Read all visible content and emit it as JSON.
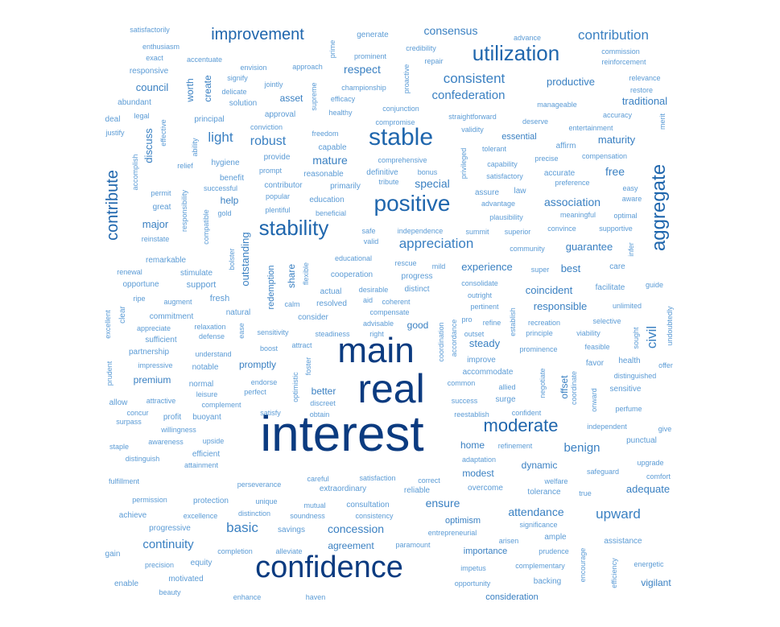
{
  "colors": {
    "light": "#5b9bd5",
    "mid": "#3a80c2",
    "strong": "#1f66ad",
    "dark": "#0b3b80"
  },
  "words": [
    {
      "text": "interest",
      "weight": 10
    },
    {
      "text": "real",
      "weight": 9
    },
    {
      "text": "main",
      "weight": 8
    },
    {
      "text": "confidence",
      "weight": 7
    },
    {
      "text": "stable",
      "weight": 6
    },
    {
      "text": "positive",
      "weight": 6
    },
    {
      "text": "stability",
      "weight": 5
    },
    {
      "text": "utilization",
      "weight": 5
    },
    {
      "text": "aggregate",
      "weight": 5
    },
    {
      "text": "moderate",
      "weight": 5
    },
    {
      "text": "contribute",
      "weight": 4
    },
    {
      "text": "improvement",
      "weight": 4
    },
    {
      "text": "contribution",
      "weight": 3
    },
    {
      "text": "consistent",
      "weight": 3
    },
    {
      "text": "confederation",
      "weight": 3
    },
    {
      "text": "appreciation",
      "weight": 3
    },
    {
      "text": "robust",
      "weight": 3
    },
    {
      "text": "light",
      "weight": 3
    },
    {
      "text": "basic",
      "weight": 3
    },
    {
      "text": "upward",
      "weight": 3
    },
    {
      "text": "civil",
      "weight": 3
    },
    {
      "text": "benign",
      "weight": 3
    },
    {
      "text": "continuity",
      "weight": 3
    },
    {
      "text": "consensus",
      "weight": 2
    },
    {
      "text": "respect",
      "weight": 2
    },
    {
      "text": "productive",
      "weight": 2
    },
    {
      "text": "traditional",
      "weight": 2
    },
    {
      "text": "mature",
      "weight": 2
    },
    {
      "text": "maturity",
      "weight": 2
    },
    {
      "text": "free",
      "weight": 2
    },
    {
      "text": "special",
      "weight": 2
    },
    {
      "text": "association",
      "weight": 2
    },
    {
      "text": "guarantee",
      "weight": 2
    },
    {
      "text": "experience",
      "weight": 2
    },
    {
      "text": "best",
      "weight": 2
    },
    {
      "text": "coincident",
      "weight": 2
    },
    {
      "text": "responsible",
      "weight": 2
    },
    {
      "text": "council",
      "weight": 2
    },
    {
      "text": "discuss",
      "weight": 2
    },
    {
      "text": "major",
      "weight": 2
    },
    {
      "text": "outstanding",
      "weight": 2
    },
    {
      "text": "ensure",
      "weight": 2
    },
    {
      "text": "attendance",
      "weight": 2
    },
    {
      "text": "concession",
      "weight": 2
    },
    {
      "text": "adequate",
      "weight": 2
    },
    {
      "text": "premium",
      "weight": 2
    },
    {
      "text": "steady",
      "weight": 2
    },
    {
      "text": "asset",
      "weight": 2
    },
    {
      "text": "worth",
      "weight": 2
    },
    {
      "text": "create",
      "weight": 2
    },
    {
      "text": "essential",
      "weight": 2
    },
    {
      "text": "help",
      "weight": 2
    },
    {
      "text": "good",
      "weight": 2
    },
    {
      "text": "home",
      "weight": 2
    },
    {
      "text": "modest",
      "weight": 2
    },
    {
      "text": "optimism",
      "weight": 2
    },
    {
      "text": "vigilant",
      "weight": 2
    },
    {
      "text": "better",
      "weight": 2
    },
    {
      "text": "dynamic",
      "weight": 2
    },
    {
      "text": "promptly",
      "weight": 2
    },
    {
      "text": "agreement",
      "weight": 2
    },
    {
      "text": "share",
      "weight": 2
    },
    {
      "text": "redemption",
      "weight": 2
    },
    {
      "text": "offset",
      "weight": 2
    },
    {
      "text": "importance",
      "weight": 2
    },
    {
      "text": "consideration",
      "weight": 2
    },
    {
      "text": "satisfactorily",
      "weight": 1
    },
    {
      "text": "enthusiasm",
      "weight": 1
    },
    {
      "text": "exact",
      "weight": 1
    },
    {
      "text": "accentuate",
      "weight": 1
    },
    {
      "text": "responsive",
      "weight": 1
    },
    {
      "text": "prime",
      "weight": 1
    },
    {
      "text": "generate",
      "weight": 1
    },
    {
      "text": "credibility",
      "weight": 1
    },
    {
      "text": "advance",
      "weight": 1
    },
    {
      "text": "commission",
      "weight": 1
    },
    {
      "text": "reinforcement",
      "weight": 1
    },
    {
      "text": "prominent",
      "weight": 1
    },
    {
      "text": "repair",
      "weight": 1
    },
    {
      "text": "envision",
      "weight": 1
    },
    {
      "text": "approach",
      "weight": 1
    },
    {
      "text": "signify",
      "weight": 1
    },
    {
      "text": "jointly",
      "weight": 1
    },
    {
      "text": "delicate",
      "weight": 1
    },
    {
      "text": "supreme",
      "weight": 1
    },
    {
      "text": "championship",
      "weight": 1
    },
    {
      "text": "proactive",
      "weight": 1
    },
    {
      "text": "relevance",
      "weight": 1
    },
    {
      "text": "restore",
      "weight": 1
    },
    {
      "text": "abundant",
      "weight": 1
    },
    {
      "text": "solution",
      "weight": 1
    },
    {
      "text": "efficacy",
      "weight": 1
    },
    {
      "text": "conjunction",
      "weight": 1
    },
    {
      "text": "manageable",
      "weight": 1
    },
    {
      "text": "legal",
      "weight": 1
    },
    {
      "text": "healthy",
      "weight": 1
    },
    {
      "text": "approval",
      "weight": 1
    },
    {
      "text": "straightforward",
      "weight": 1
    },
    {
      "text": "accuracy",
      "weight": 1
    },
    {
      "text": "merit",
      "weight": 1
    },
    {
      "text": "deal",
      "weight": 1
    },
    {
      "text": "principal",
      "weight": 1
    },
    {
      "text": "compromise",
      "weight": 1
    },
    {
      "text": "deserve",
      "weight": 1
    },
    {
      "text": "entertainment",
      "weight": 1
    },
    {
      "text": "justify",
      "weight": 1
    },
    {
      "text": "effective",
      "weight": 1
    },
    {
      "text": "conviction",
      "weight": 1
    },
    {
      "text": "validity",
      "weight": 1
    },
    {
      "text": "freedom",
      "weight": 1
    },
    {
      "text": "ability",
      "weight": 1
    },
    {
      "text": "capable",
      "weight": 1
    },
    {
      "text": "privileged",
      "weight": 1
    },
    {
      "text": "tolerant",
      "weight": 1
    },
    {
      "text": "affirm",
      "weight": 1
    },
    {
      "text": "compensation",
      "weight": 1
    },
    {
      "text": "accomplish",
      "weight": 1
    },
    {
      "text": "comprehensive",
      "weight": 1
    },
    {
      "text": "precise",
      "weight": 1
    },
    {
      "text": "provide",
      "weight": 1
    },
    {
      "text": "capability",
      "weight": 1
    },
    {
      "text": "relief",
      "weight": 1
    },
    {
      "text": "hygiene",
      "weight": 1
    },
    {
      "text": "prompt",
      "weight": 1
    },
    {
      "text": "definitive",
      "weight": 1
    },
    {
      "text": "bonus",
      "weight": 1
    },
    {
      "text": "accurate",
      "weight": 1
    },
    {
      "text": "benefit",
      "weight": 1
    },
    {
      "text": "reasonable",
      "weight": 1
    },
    {
      "text": "satisfactory",
      "weight": 1
    },
    {
      "text": "preference",
      "weight": 1
    },
    {
      "text": "contributor",
      "weight": 1
    },
    {
      "text": "primarily",
      "weight": 1
    },
    {
      "text": "tribute",
      "weight": 1
    },
    {
      "text": "easy",
      "weight": 1
    },
    {
      "text": "successful",
      "weight": 1
    },
    {
      "text": "assure",
      "weight": 1
    },
    {
      "text": "law",
      "weight": 1
    },
    {
      "text": "permit",
      "weight": 1
    },
    {
      "text": "responsibility",
      "weight": 1
    },
    {
      "text": "popular",
      "weight": 1
    },
    {
      "text": "education",
      "weight": 1
    },
    {
      "text": "aware",
      "weight": 1
    },
    {
      "text": "great",
      "weight": 1
    },
    {
      "text": "plentiful",
      "weight": 1
    },
    {
      "text": "advantage",
      "weight": 1
    },
    {
      "text": "compatible",
      "weight": 1
    },
    {
      "text": "gold",
      "weight": 1
    },
    {
      "text": "beneficial",
      "weight": 1
    },
    {
      "text": "meaningful",
      "weight": 1
    },
    {
      "text": "optimal",
      "weight": 1
    },
    {
      "text": "plausibility",
      "weight": 1
    },
    {
      "text": "reinstate",
      "weight": 1
    },
    {
      "text": "safe",
      "weight": 1
    },
    {
      "text": "independence",
      "weight": 1
    },
    {
      "text": "summit",
      "weight": 1
    },
    {
      "text": "superior",
      "weight": 1
    },
    {
      "text": "convince",
      "weight": 1
    },
    {
      "text": "supportive",
      "weight": 1
    },
    {
      "text": "valid",
      "weight": 1
    },
    {
      "text": "community",
      "weight": 1
    },
    {
      "text": "infer",
      "weight": 1
    },
    {
      "text": "bolster",
      "weight": 1
    },
    {
      "text": "remarkable",
      "weight": 1
    },
    {
      "text": "educational",
      "weight": 1
    },
    {
      "text": "rescue",
      "weight": 1
    },
    {
      "text": "mild",
      "weight": 1
    },
    {
      "text": "super",
      "weight": 1
    },
    {
      "text": "care",
      "weight": 1
    },
    {
      "text": "renewal",
      "weight": 1
    },
    {
      "text": "stimulate",
      "weight": 1
    },
    {
      "text": "flexible",
      "weight": 1
    },
    {
      "text": "cooperation",
      "weight": 1
    },
    {
      "text": "progress",
      "weight": 1
    },
    {
      "text": "opportune",
      "weight": 1
    },
    {
      "text": "support",
      "weight": 1
    },
    {
      "text": "consolidate",
      "weight": 1
    },
    {
      "text": "facilitate",
      "weight": 1
    },
    {
      "text": "guide",
      "weight": 1
    },
    {
      "text": "ripe",
      "weight": 1
    },
    {
      "text": "desirable",
      "weight": 1
    },
    {
      "text": "distinct",
      "weight": 1
    },
    {
      "text": "actual",
      "weight": 1
    },
    {
      "text": "outright",
      "weight": 1
    },
    {
      "text": "augment",
      "weight": 1
    },
    {
      "text": "fresh",
      "weight": 1
    },
    {
      "text": "aid",
      "weight": 1
    },
    {
      "text": "coherent",
      "weight": 1
    },
    {
      "text": "calm",
      "weight": 1
    },
    {
      "text": "resolved",
      "weight": 1
    },
    {
      "text": "pertinent",
      "weight": 1
    },
    {
      "text": "unlimited",
      "weight": 1
    },
    {
      "text": "undoubtedly",
      "weight": 1
    },
    {
      "text": "excellent",
      "weight": 1
    },
    {
      "text": "clear",
      "weight": 1
    },
    {
      "text": "natural",
      "weight": 1
    },
    {
      "text": "compensate",
      "weight": 1
    },
    {
      "text": "commitment",
      "weight": 1
    },
    {
      "text": "consider",
      "weight": 1
    },
    {
      "text": "pro",
      "weight": 1
    },
    {
      "text": "refine",
      "weight": 1
    },
    {
      "text": "establish",
      "weight": 1
    },
    {
      "text": "recreation",
      "weight": 1
    },
    {
      "text": "selective",
      "weight": 1
    },
    {
      "text": "appreciate",
      "weight": 1
    },
    {
      "text": "relaxation",
      "weight": 1
    },
    {
      "text": "ease",
      "weight": 1
    },
    {
      "text": "advisable",
      "weight": 1
    },
    {
      "text": "principle",
      "weight": 1
    },
    {
      "text": "viability",
      "weight": 1
    },
    {
      "text": "sought",
      "weight": 1
    },
    {
      "text": "sufficient",
      "weight": 1
    },
    {
      "text": "defense",
      "weight": 1
    },
    {
      "text": "sensitivity",
      "weight": 1
    },
    {
      "text": "right",
      "weight": 1
    },
    {
      "text": "outset",
      "weight": 1
    },
    {
      "text": "steadiness",
      "weight": 1
    },
    {
      "text": "accordance",
      "weight": 1
    },
    {
      "text": "feasible",
      "weight": 1
    },
    {
      "text": "partnership",
      "weight": 1
    },
    {
      "text": "attract",
      "weight": 1
    },
    {
      "text": "coordination",
      "weight": 1
    },
    {
      "text": "prominence",
      "weight": 1
    },
    {
      "text": "understand",
      "weight": 1
    },
    {
      "text": "boost",
      "weight": 1
    },
    {
      "text": "improve",
      "weight": 1
    },
    {
      "text": "health",
      "weight": 1
    },
    {
      "text": "prudent",
      "weight": 1
    },
    {
      "text": "impressive",
      "weight": 1
    },
    {
      "text": "notable",
      "weight": 1
    },
    {
      "text": "foster",
      "weight": 1
    },
    {
      "text": "favor",
      "weight": 1
    },
    {
      "text": "offer",
      "weight": 1
    },
    {
      "text": "accommodate",
      "weight": 1
    },
    {
      "text": "negotiate",
      "weight": 1
    },
    {
      "text": "distinguished",
      "weight": 1
    },
    {
      "text": "endorse",
      "weight": 1
    },
    {
      "text": "common",
      "weight": 1
    },
    {
      "text": "allied",
      "weight": 1
    },
    {
      "text": "coordinate",
      "weight": 1
    },
    {
      "text": "sensitive",
      "weight": 1
    },
    {
      "text": "normal",
      "weight": 1
    },
    {
      "text": "optimistic",
      "weight": 1
    },
    {
      "text": "allow",
      "weight": 1
    },
    {
      "text": "leisure",
      "weight": 1
    },
    {
      "text": "perfect",
      "weight": 1
    },
    {
      "text": "onward",
      "weight": 1
    },
    {
      "text": "attractive",
      "weight": 1
    },
    {
      "text": "complement",
      "weight": 1
    },
    {
      "text": "discreet",
      "weight": 1
    },
    {
      "text": "success",
      "weight": 1
    },
    {
      "text": "surge",
      "weight": 1
    },
    {
      "text": "perfume",
      "weight": 1
    },
    {
      "text": "concur",
      "weight": 1
    },
    {
      "text": "satisfy",
      "weight": 1
    },
    {
      "text": "obtain",
      "weight": 1
    },
    {
      "text": "reestablish",
      "weight": 1
    },
    {
      "text": "confident",
      "weight": 1
    },
    {
      "text": "surpass",
      "weight": 1
    },
    {
      "text": "profit",
      "weight": 1
    },
    {
      "text": "buoyant",
      "weight": 1
    },
    {
      "text": "independent",
      "weight": 1
    },
    {
      "text": "give",
      "weight": 1
    },
    {
      "text": "willingness",
      "weight": 1
    },
    {
      "text": "punctual",
      "weight": 1
    },
    {
      "text": "staple",
      "weight": 1
    },
    {
      "text": "awareness",
      "weight": 1
    },
    {
      "text": "upside",
      "weight": 1
    },
    {
      "text": "refinement",
      "weight": 1
    },
    {
      "text": "distinguish",
      "weight": 1
    },
    {
      "text": "efficient",
      "weight": 1
    },
    {
      "text": "adaptation",
      "weight": 1
    },
    {
      "text": "safeguard",
      "weight": 1
    },
    {
      "text": "upgrade",
      "weight": 1
    },
    {
      "text": "attainment",
      "weight": 1
    },
    {
      "text": "comfort",
      "weight": 1
    },
    {
      "text": "fulfillment",
      "weight": 1
    },
    {
      "text": "careful",
      "weight": 1
    },
    {
      "text": "satisfaction",
      "weight": 1
    },
    {
      "text": "correct",
      "weight": 1
    },
    {
      "text": "welfare",
      "weight": 1
    },
    {
      "text": "perseverance",
      "weight": 1
    },
    {
      "text": "reliable",
      "weight": 1
    },
    {
      "text": "overcome",
      "weight": 1
    },
    {
      "text": "tolerance",
      "weight": 1
    },
    {
      "text": "true",
      "weight": 1
    },
    {
      "text": "permission",
      "weight": 1
    },
    {
      "text": "protection",
      "weight": 1
    },
    {
      "text": "unique",
      "weight": 1
    },
    {
      "text": "extraordinary",
      "weight": 1
    },
    {
      "text": "mutual",
      "weight": 1
    },
    {
      "text": "consultation",
      "weight": 1
    },
    {
      "text": "achieve",
      "weight": 1
    },
    {
      "text": "excellence",
      "weight": 1
    },
    {
      "text": "distinction",
      "weight": 1
    },
    {
      "text": "soundness",
      "weight": 1
    },
    {
      "text": "consistency",
      "weight": 1
    },
    {
      "text": "significance",
      "weight": 1
    },
    {
      "text": "progressive",
      "weight": 1
    },
    {
      "text": "savings",
      "weight": 1
    },
    {
      "text": "entrepreneurial",
      "weight": 1
    },
    {
      "text": "ample",
      "weight": 1
    },
    {
      "text": "assistance",
      "weight": 1
    },
    {
      "text": "arisen",
      "weight": 1
    },
    {
      "text": "paramount",
      "weight": 1
    },
    {
      "text": "encourage",
      "weight": 1
    },
    {
      "text": "gain",
      "weight": 1
    },
    {
      "text": "completion",
      "weight": 1
    },
    {
      "text": "alleviate",
      "weight": 1
    },
    {
      "text": "prudence",
      "weight": 1
    },
    {
      "text": "efficiency",
      "weight": 1
    },
    {
      "text": "precision",
      "weight": 1
    },
    {
      "text": "equity",
      "weight": 1
    },
    {
      "text": "impetus",
      "weight": 1
    },
    {
      "text": "complementary",
      "weight": 1
    },
    {
      "text": "energetic",
      "weight": 1
    },
    {
      "text": "motivated",
      "weight": 1
    },
    {
      "text": "enable",
      "weight": 1
    },
    {
      "text": "opportunity",
      "weight": 1
    },
    {
      "text": "backing",
      "weight": 1
    },
    {
      "text": "beauty",
      "weight": 1
    },
    {
      "text": "enhance",
      "weight": 1
    },
    {
      "text": "haven",
      "weight": 1
    }
  ]
}
